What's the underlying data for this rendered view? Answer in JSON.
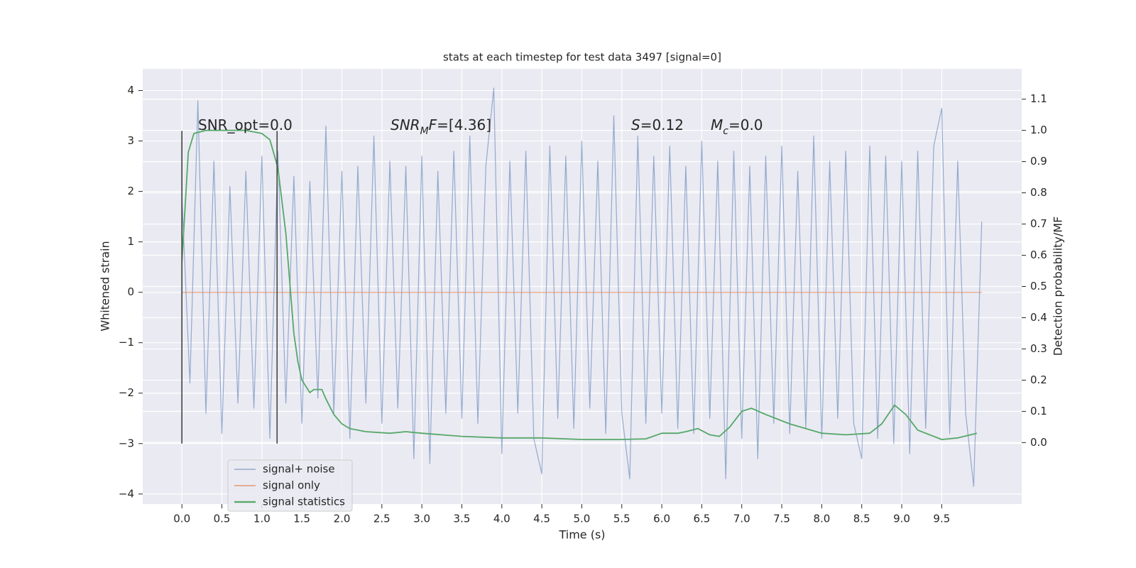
{
  "chart_data": {
    "type": "line",
    "title": "stats at each timestep for test data 3497 [signal=0]",
    "xlabel": "Time (s)",
    "ylabel": "Whitened strain",
    "y2label": "Detection probability/MF",
    "xlim": [
      -0.49,
      10.5
    ],
    "ylim": [
      -4.2,
      4.43
    ],
    "y2lim": [
      -0.197,
      1.197
    ],
    "xticks": [
      {
        "value": 0,
        "label": "0.0"
      },
      0.5,
      {
        "value": 1,
        "label": "1.0"
      },
      1.5,
      {
        "value": 2,
        "label": "2.0"
      },
      2.5,
      {
        "value": 3,
        "label": "3.0"
      },
      3.5,
      {
        "value": 4,
        "label": "4.0"
      },
      4.5,
      {
        "value": 5,
        "label": "5.0"
      },
      5.5,
      {
        "value": 6,
        "label": "6.0"
      },
      6.5,
      {
        "value": 7,
        "label": "7.0"
      },
      7.5,
      {
        "value": 8,
        "label": "8.0"
      },
      8.5,
      {
        "value": 9,
        "label": "9.0"
      },
      9.5
    ],
    "yticks": [
      {
        "value": -4,
        "label": "−4"
      },
      {
        "value": -3,
        "label": "−3"
      },
      {
        "value": -2,
        "label": "−2"
      },
      {
        "value": -1,
        "label": "−1"
      },
      0,
      1,
      2,
      3,
      4
    ],
    "y2ticks": [
      {
        "value": 0,
        "label": "0.0"
      },
      0.1,
      0.2,
      0.3,
      0.4,
      0.5,
      0.6,
      0.7,
      0.8,
      0.9,
      {
        "value": 1,
        "label": "1.0"
      },
      1.1
    ],
    "grid": true,
    "legend": "lower left",
    "series": [
      {
        "name": "signal+ noise",
        "color": "#4c72b0",
        "x": [
          0.0,
          0.1,
          0.2,
          0.3,
          0.4,
          0.5,
          0.6,
          0.7,
          0.8,
          0.9,
          1.0,
          1.1,
          1.2,
          1.3,
          1.4,
          1.5,
          1.6,
          1.7,
          1.8,
          1.9,
          2.0,
          2.1,
          2.2,
          2.3,
          2.4,
          2.5,
          2.6,
          2.7,
          2.8,
          2.9,
          3.0,
          3.1,
          3.2,
          3.3,
          3.4,
          3.5,
          3.6,
          3.7,
          3.8,
          3.9,
          4.0,
          4.1,
          4.2,
          4.3,
          4.4,
          4.5,
          4.6,
          4.7,
          4.8,
          4.9,
          5.0,
          5.1,
          5.2,
          5.3,
          5.4,
          5.5,
          5.6,
          5.7,
          5.8,
          5.9,
          6.0,
          6.1,
          6.2,
          6.3,
          6.4,
          6.5,
          6.6,
          6.7,
          6.8,
          6.9,
          7.0,
          7.1,
          7.2,
          7.3,
          7.4,
          7.5,
          7.6,
          7.7,
          7.8,
          7.9,
          8.0,
          8.1,
          8.2,
          8.3,
          8.4,
          8.5,
          8.6,
          8.7,
          8.8,
          8.9,
          9.0,
          9.1,
          9.2,
          9.3,
          9.4,
          9.5,
          9.6,
          9.7,
          9.8,
          9.9,
          10.0
        ],
        "values": [
          1.9,
          -1.8,
          3.8,
          -2.4,
          2.6,
          -2.8,
          2.1,
          -2.2,
          2.4,
          -2.3,
          2.7,
          -2.9,
          2.8,
          -2.2,
          2.3,
          -2.6,
          2.2,
          -2.1,
          3.3,
          -2.4,
          2.4,
          -2.9,
          2.5,
          -2.2,
          3.1,
          -2.6,
          2.6,
          -2.3,
          2.5,
          -3.3,
          2.7,
          -3.4,
          2.4,
          -2.4,
          2.8,
          -2.5,
          3.1,
          -2.6,
          2.5,
          4.05,
          -3.2,
          2.6,
          -2.4,
          2.8,
          -2.9,
          -3.6,
          2.9,
          -2.5,
          2.7,
          -2.7,
          3.0,
          -2.3,
          2.6,
          -2.8,
          3.5,
          -2.4,
          -3.7,
          3.1,
          -2.6,
          2.7,
          -2.4,
          2.9,
          -2.7,
          2.5,
          -2.8,
          3.0,
          -2.5,
          2.6,
          -3.7,
          2.8,
          -2.9,
          2.5,
          -3.3,
          2.7,
          -2.6,
          2.9,
          -2.8,
          2.4,
          -2.7,
          3.1,
          -2.9,
          2.6,
          -2.5,
          2.8,
          -2.6,
          -3.3,
          2.9,
          -2.9,
          2.7,
          -3.0,
          2.6,
          -3.2,
          2.8,
          -2.7,
          2.9,
          3.65,
          -2.8,
          2.6,
          -2.4,
          -3.85,
          1.4
        ]
      },
      {
        "name": "signal only",
        "color": "#dd8452",
        "x": [
          0,
          10
        ],
        "values": [
          0,
          0
        ]
      },
      {
        "name": "signal statistics",
        "color": "#55a868",
        "axis": "y2",
        "x": [
          0,
          0.08,
          0.15,
          0.3,
          0.5,
          0.8,
          1.0,
          1.1,
          1.2,
          1.3,
          1.4,
          1.45,
          1.5,
          1.6,
          1.65,
          1.75,
          1.8,
          1.9,
          2.0,
          2.1,
          2.3,
          2.6,
          2.8,
          3.0,
          3.5,
          4.0,
          4.5,
          5.0,
          5.5,
          5.8,
          6.0,
          6.2,
          6.3,
          6.45,
          6.6,
          6.72,
          6.85,
          7.0,
          7.12,
          7.3,
          7.6,
          8.0,
          8.3,
          8.6,
          8.75,
          8.91,
          9.05,
          9.2,
          9.5,
          9.7,
          9.94
        ],
        "values": [
          0.58,
          0.93,
          0.99,
          1.0,
          1.0,
          1.0,
          0.99,
          0.97,
          0.88,
          0.67,
          0.35,
          0.26,
          0.2,
          0.16,
          0.17,
          0.17,
          0.14,
          0.09,
          0.06,
          0.045,
          0.035,
          0.03,
          0.035,
          0.03,
          0.02,
          0.015,
          0.015,
          0.01,
          0.01,
          0.012,
          0.03,
          0.03,
          0.035,
          0.045,
          0.025,
          0.02,
          0.05,
          0.1,
          0.11,
          0.09,
          0.06,
          0.03,
          0.025,
          0.03,
          0.06,
          0.12,
          0.09,
          0.04,
          0.01,
          0.015,
          0.03
        ]
      }
    ],
    "vlines": {
      "x": [
        0,
        1.19
      ],
      "y": [
        -3,
        3.2
      ]
    },
    "annotations": [
      {
        "parts": [
          {
            "text": "SNR_opt=0.0"
          }
        ]
      },
      {
        "parts": [
          {
            "text": "SNR",
            "italic": true
          },
          {
            "text": "M",
            "italic": true,
            "sub": true
          },
          {
            "text": "F",
            "italic": true
          },
          {
            "text": "=[4.36]"
          }
        ]
      },
      {
        "parts": [
          {
            "text": "S",
            "italic": true
          },
          {
            "text": "=0.12"
          }
        ]
      },
      {
        "parts": [
          {
            "text": "M",
            "italic": true
          },
          {
            "text": "c",
            "italic": true,
            "sub": true
          },
          {
            "text": "=0.0"
          }
        ]
      }
    ]
  }
}
